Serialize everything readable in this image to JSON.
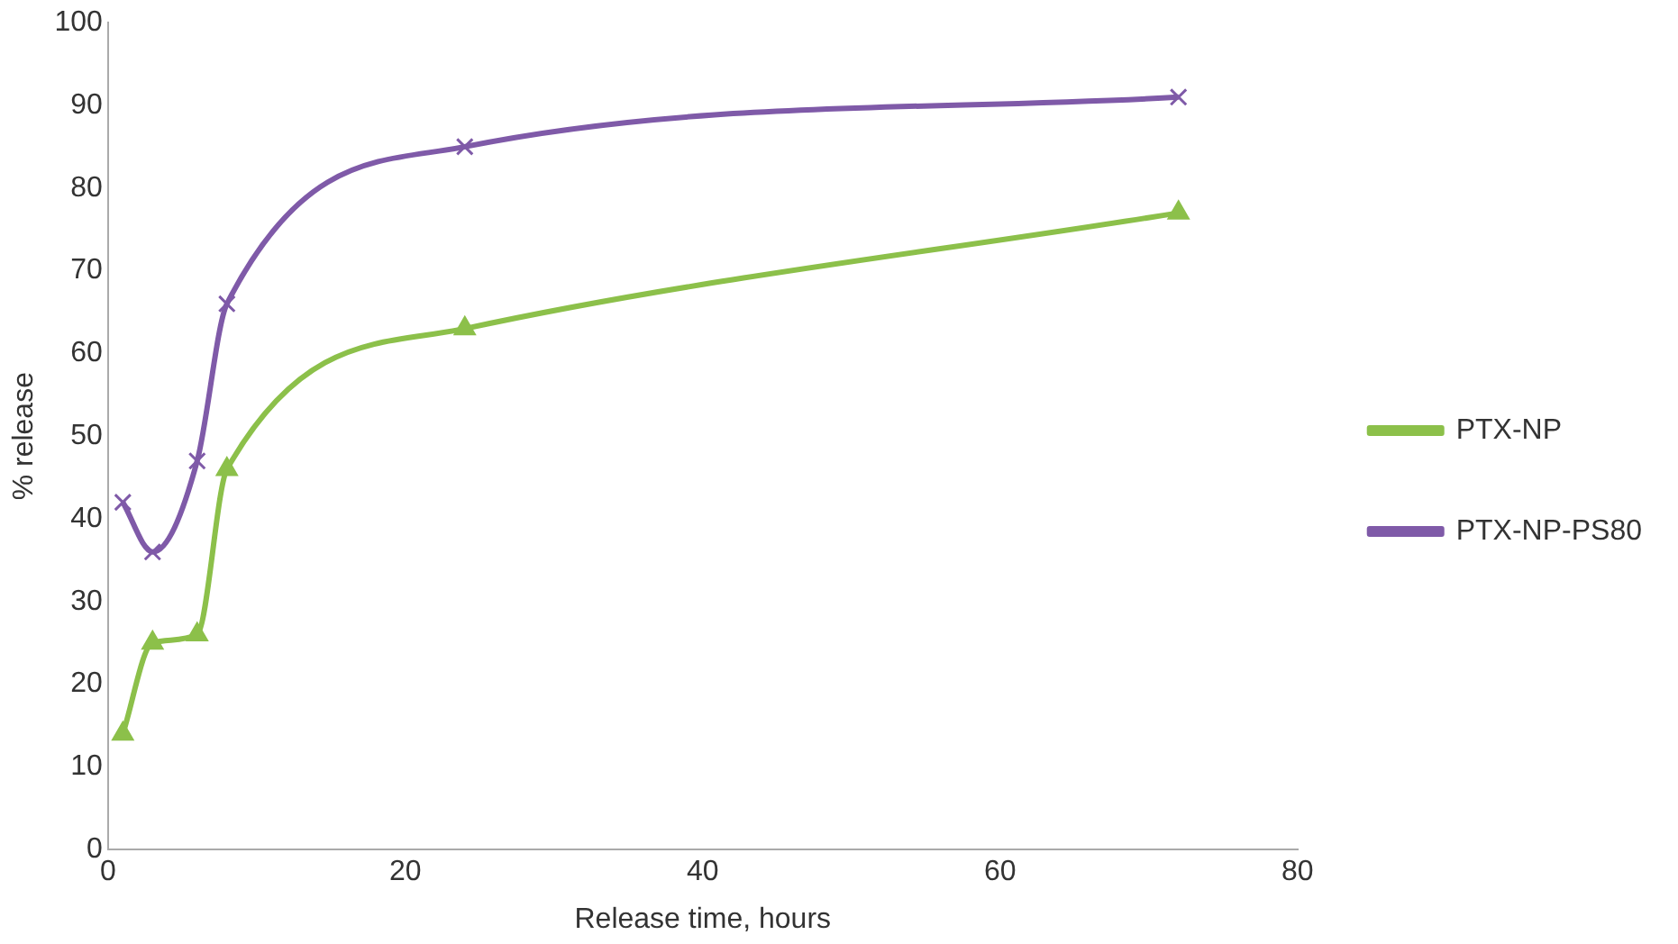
{
  "chart_data": {
    "type": "line",
    "xlabel": "Release time, hours",
    "ylabel": "% release",
    "xlim": [
      0,
      80
    ],
    "xticks": [
      0,
      20,
      40,
      60,
      80
    ],
    "ylim": [
      0,
      100
    ],
    "yticks": [
      0,
      10,
      20,
      30,
      40,
      50,
      60,
      70,
      80,
      90,
      100
    ],
    "x": [
      1,
      3,
      6,
      8,
      24,
      72
    ],
    "grid": false,
    "legend": "right",
    "line_style": "solid",
    "series": [
      {
        "name": "PTX-NP",
        "color": "#8cc04a",
        "marker": "triangle",
        "values": [
          14,
          25,
          26,
          46,
          63,
          77
        ]
      },
      {
        "name": "PTX-NP-PS80",
        "color": "#7f5aa8",
        "marker": "cross",
        "values": [
          42,
          36,
          47,
          66,
          85,
          91
        ]
      }
    ]
  }
}
